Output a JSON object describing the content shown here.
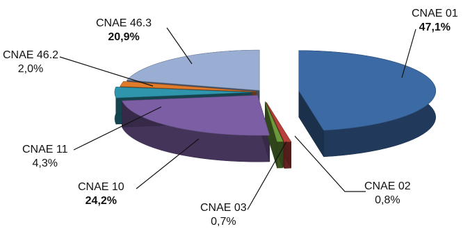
{
  "chart_data": {
    "type": "pie",
    "style": "3d-exploded",
    "slices": [
      {
        "category": "CNAE 01",
        "value": 47.1,
        "label": "47,1%",
        "bold": true,
        "color": "#3c6aa5"
      },
      {
        "category": "CNAE 02",
        "value": 0.8,
        "label": "0,8%",
        "bold": false,
        "color": "#b8403a"
      },
      {
        "category": "CNAE 03",
        "value": 0.7,
        "label": "0,7%",
        "bold": false,
        "color": "#6a9a3a"
      },
      {
        "category": "CNAE 10",
        "value": 24.2,
        "label": "24,2%",
        "bold": true,
        "color": "#7b5ea3"
      },
      {
        "category": "CNAE 11",
        "value": 4.3,
        "label": "4,3%",
        "bold": false,
        "color": "#2f95ad"
      },
      {
        "category": "CNAE 46.2",
        "value": 2.0,
        "label": "2,0%",
        "bold": false,
        "color": "#e07b2c"
      },
      {
        "category": "CNAE 46.3",
        "value": 20.9,
        "label": "20,9%",
        "bold": true,
        "color": "#9aaed4"
      }
    ]
  }
}
